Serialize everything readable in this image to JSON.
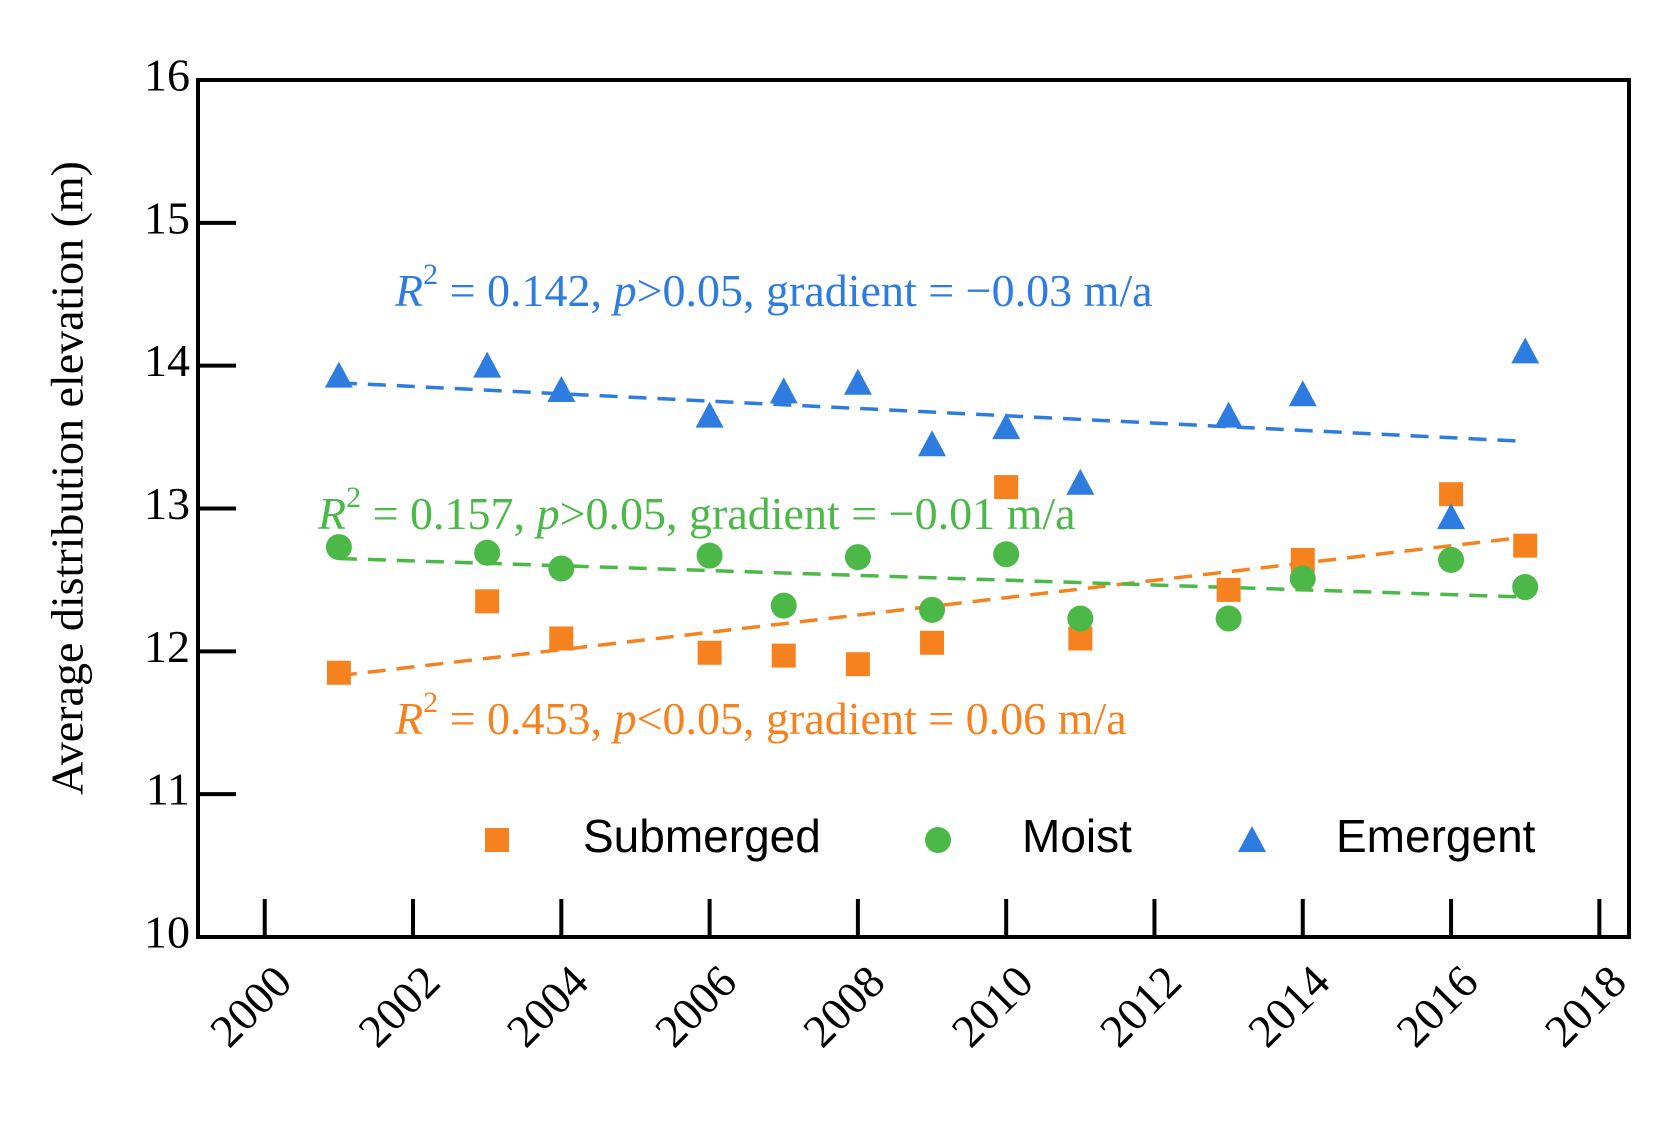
{
  "chart_data": {
    "type": "scatter",
    "xlabel": "",
    "ylabel": "Average distribution elevation (m)",
    "xlim": [
      1999.1,
      2018.4
    ],
    "ylim": [
      10,
      16
    ],
    "xticks": [
      2000,
      2002,
      2004,
      2006,
      2008,
      2010,
      2012,
      2014,
      2016,
      2018
    ],
    "yticks": [
      10,
      11,
      12,
      13,
      14,
      15,
      16
    ],
    "grid": false,
    "legend_position": "bottom-right",
    "series": [
      {
        "name": "Submerged",
        "marker": "square",
        "color": "#f5821f",
        "x": [
          2001,
          2003,
          2004,
          2006,
          2007,
          2008,
          2009,
          2010,
          2011,
          2013,
          2014,
          2016,
          2017
        ],
        "y": [
          11.85,
          12.35,
          12.09,
          11.99,
          11.97,
          11.91,
          12.06,
          13.15,
          12.09,
          12.43,
          12.64,
          13.1,
          12.74
        ],
        "trend": {
          "x0": 2001,
          "y0": 11.83,
          "x1": 2017,
          "y1": 12.8
        },
        "annotation": {
          "r2_label": "R",
          "r2_sup": "2",
          "r2_value": " = 0.453, ",
          "p_label": "p",
          "p_value": "<0.05, gradient = 0.06 m/a"
        }
      },
      {
        "name": "Moist",
        "marker": "circle",
        "color": "#4cb848",
        "x": [
          2001,
          2003,
          2004,
          2006,
          2007,
          2008,
          2009,
          2010,
          2011,
          2013,
          2014,
          2016,
          2017
        ],
        "y": [
          12.73,
          12.69,
          12.58,
          12.67,
          12.32,
          12.66,
          12.29,
          12.68,
          12.23,
          12.23,
          12.51,
          12.64,
          12.45
        ],
        "trend": {
          "x0": 2001,
          "y0": 12.65,
          "x1": 2017,
          "y1": 12.38
        },
        "annotation": {
          "r2_label": "R",
          "r2_sup": "2",
          "r2_value": " = 0.157, ",
          "p_label": "p",
          "p_value": ">0.05, gradient = −0.01 m/a"
        }
      },
      {
        "name": "Emergent",
        "marker": "triangle",
        "color": "#2e7ce0",
        "x": [
          2001,
          2003,
          2004,
          2006,
          2007,
          2008,
          2009,
          2010,
          2011,
          2013,
          2014,
          2016,
          2017
        ],
        "y": [
          13.93,
          14.0,
          13.83,
          13.65,
          13.82,
          13.88,
          13.45,
          13.57,
          13.18,
          13.65,
          13.8,
          12.94,
          14.1
        ],
        "trend": {
          "x0": 2001,
          "y0": 13.88,
          "x1": 2017,
          "y1": 13.47
        },
        "annotation": {
          "r2_label": "R",
          "r2_sup": "2",
          "r2_value": " = 0.142, ",
          "p_label": "p",
          "p_value": ">0.05, gradient = −0.03 m/a"
        }
      }
    ]
  }
}
